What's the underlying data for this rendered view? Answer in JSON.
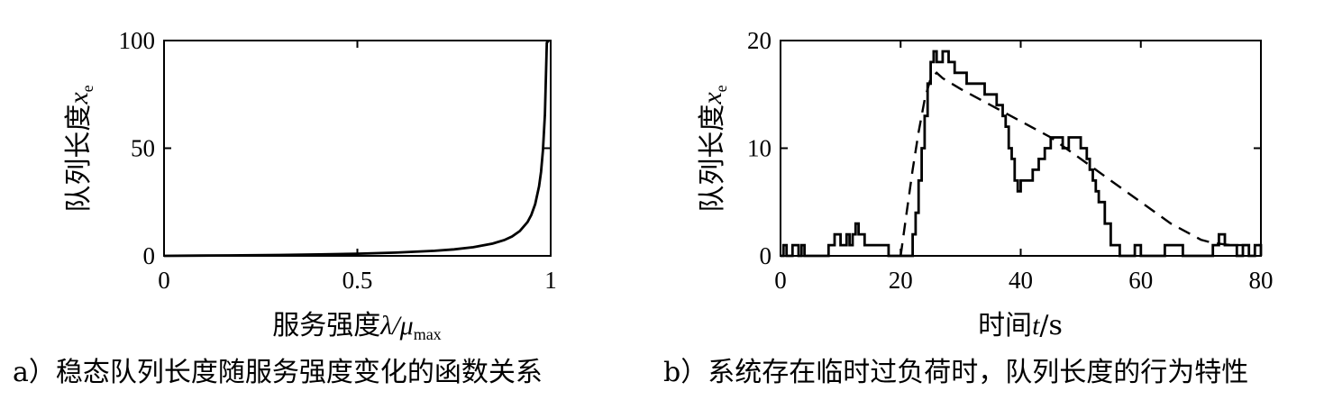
{
  "chart_data": [
    {
      "type": "line",
      "title": "",
      "caption": "a）稳态队列长度随服务强度变化的函数关系",
      "xlabel": {
        "prefix": "服务强度",
        "var": "λ/μ",
        "sub": "max"
      },
      "ylabel": {
        "prefix": "队列长度",
        "var": "x",
        "sub": "e"
      },
      "xlim": [
        0,
        1
      ],
      "ylim": [
        0,
        100
      ],
      "xticks": [
        {
          "v": 0,
          "t": "0"
        },
        {
          "v": 0.5,
          "t": "0.5"
        },
        {
          "v": 1,
          "t": "1"
        }
      ],
      "yticks": [
        {
          "v": 0,
          "t": "0"
        },
        {
          "v": 50,
          "t": "50"
        },
        {
          "v": 100,
          "t": "100"
        }
      ],
      "grid": false,
      "series": [
        {
          "x": [
            0,
            0.1,
            0.2,
            0.3,
            0.4,
            0.5,
            0.6,
            0.7,
            0.75,
            0.8,
            0.85,
            0.88,
            0.9,
            0.92,
            0.94,
            0.95,
            0.96,
            0.97,
            0.975,
            0.98,
            0.985,
            0.99,
            0.995
          ],
          "y": [
            0,
            0.11,
            0.25,
            0.43,
            0.67,
            1.0,
            1.5,
            2.33,
            3.0,
            4.0,
            5.67,
            7.33,
            9.0,
            11.5,
            15.67,
            19.0,
            24.0,
            32.3,
            39.0,
            49.0,
            65.7,
            99.0,
            100
          ]
        }
      ]
    },
    {
      "type": "line",
      "title": "",
      "caption": "b）系统存在临时过负荷时，队列长度的行为特性",
      "xlabel": {
        "prefix": "时间",
        "var": "t",
        "suffix": "/s"
      },
      "ylabel": {
        "prefix": "队列长度",
        "var": "x",
        "sub": "e"
      },
      "xlim": [
        0,
        80
      ],
      "ylim": [
        0,
        20
      ],
      "xticks": [
        {
          "v": 0,
          "t": "0"
        },
        {
          "v": 20,
          "t": "20"
        },
        {
          "v": 40,
          "t": "40"
        },
        {
          "v": 60,
          "t": "60"
        },
        {
          "v": 80,
          "t": "80"
        }
      ],
      "yticks": [
        {
          "v": 0,
          "t": "0"
        },
        {
          "v": 10,
          "t": "10"
        },
        {
          "v": 20,
          "t": "20"
        }
      ],
      "grid": false,
      "series": [
        {
          "style": "solid",
          "step": true,
          "x": [
            0,
            0.5,
            1,
            2,
            3,
            3.5,
            4,
            5,
            8,
            9,
            10,
            11,
            11.5,
            12,
            12.5,
            13,
            14,
            15,
            16,
            17,
            18,
            19,
            20,
            21,
            22,
            22.5,
            23,
            23.5,
            24,
            24.5,
            25,
            25.5,
            26,
            27,
            28,
            29,
            30,
            31,
            32,
            33,
            34,
            35,
            36,
            37,
            37.5,
            38,
            38.5,
            39,
            39.5,
            40,
            41,
            42,
            43,
            44,
            45,
            46,
            47,
            48,
            49,
            50,
            51,
            51.5,
            52,
            52.5,
            53,
            54,
            55,
            56,
            56.5,
            57,
            58,
            59,
            60,
            61,
            62,
            63,
            64,
            65,
            66,
            67,
            68,
            69,
            70,
            71,
            72,
            73,
            74,
            75,
            76,
            77,
            78,
            79,
            80
          ],
          "y": [
            0,
            1,
            0,
            1,
            0,
            1,
            0,
            0,
            1,
            2,
            1,
            2,
            1,
            2,
            3,
            2,
            1,
            1,
            1,
            1,
            0,
            0,
            0,
            0,
            2,
            4,
            7,
            10,
            13,
            16,
            18,
            19,
            18,
            19,
            18,
            17,
            17,
            16,
            16,
            16,
            15,
            15,
            14,
            13,
            12,
            10,
            9,
            7,
            6,
            7,
            7,
            8,
            9,
            10,
            11,
            11,
            10,
            11,
            11,
            10,
            9,
            8,
            7,
            6,
            5,
            3,
            1,
            1,
            0,
            0,
            0,
            1,
            0,
            0,
            0,
            0,
            1,
            1,
            1,
            0,
            0,
            0,
            0,
            0,
            1,
            2,
            1,
            1,
            0,
            1,
            0,
            1,
            0
          ]
        },
        {
          "style": "dashed",
          "step": false,
          "x": [
            20,
            21,
            22,
            23,
            24,
            25,
            26,
            27,
            30,
            35,
            40,
            45,
            50,
            55,
            60,
            65,
            70,
            72,
            75,
            80
          ],
          "y": [
            0,
            4,
            8,
            11.5,
            14.5,
            16.5,
            17,
            16.5,
            15.5,
            14,
            12.5,
            11,
            9,
            7,
            5,
            3,
            1.5,
            1.2,
            1,
            1
          ]
        }
      ]
    }
  ]
}
